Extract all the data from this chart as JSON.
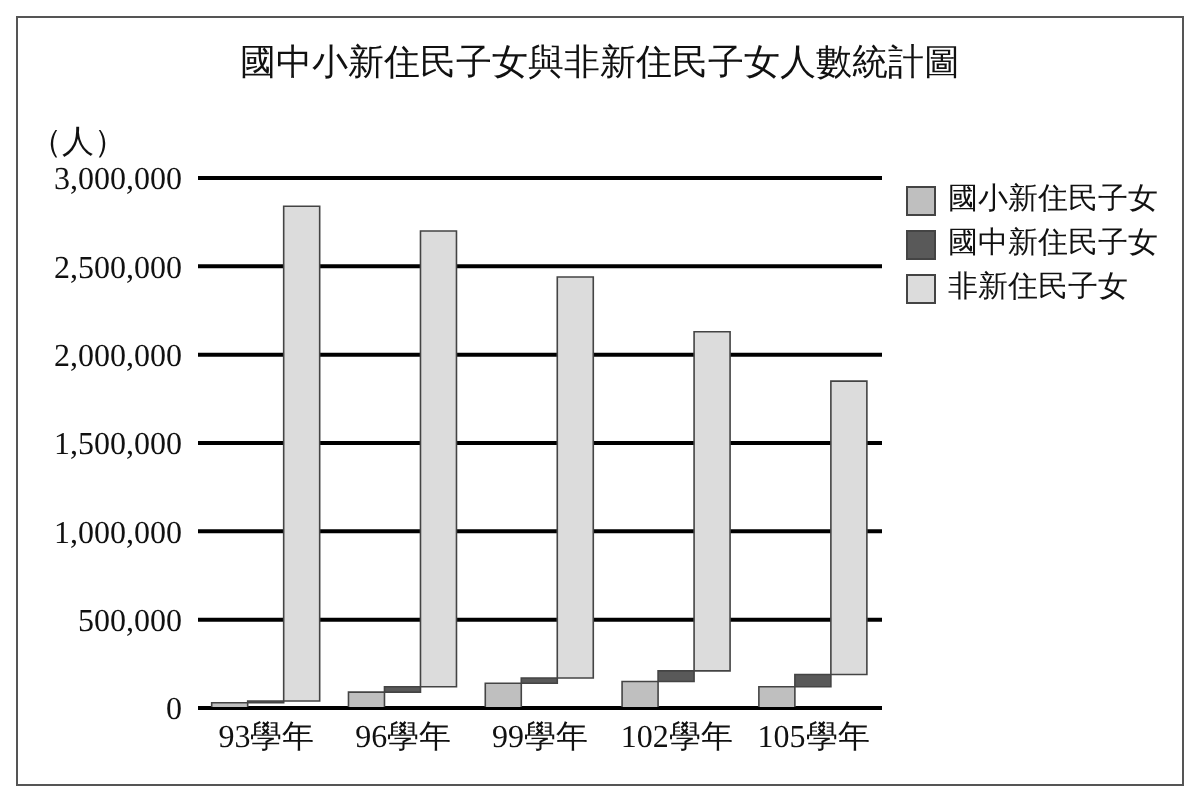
{
  "chart_data": {
    "type": "bar",
    "title": "國中小新住民子女與非新住民子女人數統計圖",
    "ylabel": "（人）",
    "categories": [
      "93學年",
      "96學年",
      "99學年",
      "102學年",
      "105學年"
    ],
    "stacked": true,
    "series": [
      {
        "name": "國小新住民子女",
        "color": "#bfbfbf",
        "values": [
          30000,
          90000,
          140000,
          150000,
          120000
        ]
      },
      {
        "name": "國中新住民子女",
        "color": "#595959",
        "values": [
          10000,
          30000,
          30000,
          60000,
          70000
        ]
      },
      {
        "name": "非新住民子女",
        "color": "#dcdcdc",
        "values": [
          2800000,
          2580000,
          2270000,
          1920000,
          1660000
        ]
      }
    ],
    "ylim": [
      0,
      3000000
    ],
    "yticks": [
      0,
      {
        "value": 500000,
        "label": "500,000"
      },
      {
        "value": 1000000,
        "label": "1,000,000"
      },
      {
        "value": 1500000,
        "label": "1,500,000"
      },
      {
        "value": 2000000,
        "label": "2,000,000"
      },
      {
        "value": 2500000,
        "label": "2,500,000"
      },
      {
        "value": 3000000,
        "label": "3,000,000"
      }
    ],
    "grid": "y",
    "legend": "top right"
  }
}
